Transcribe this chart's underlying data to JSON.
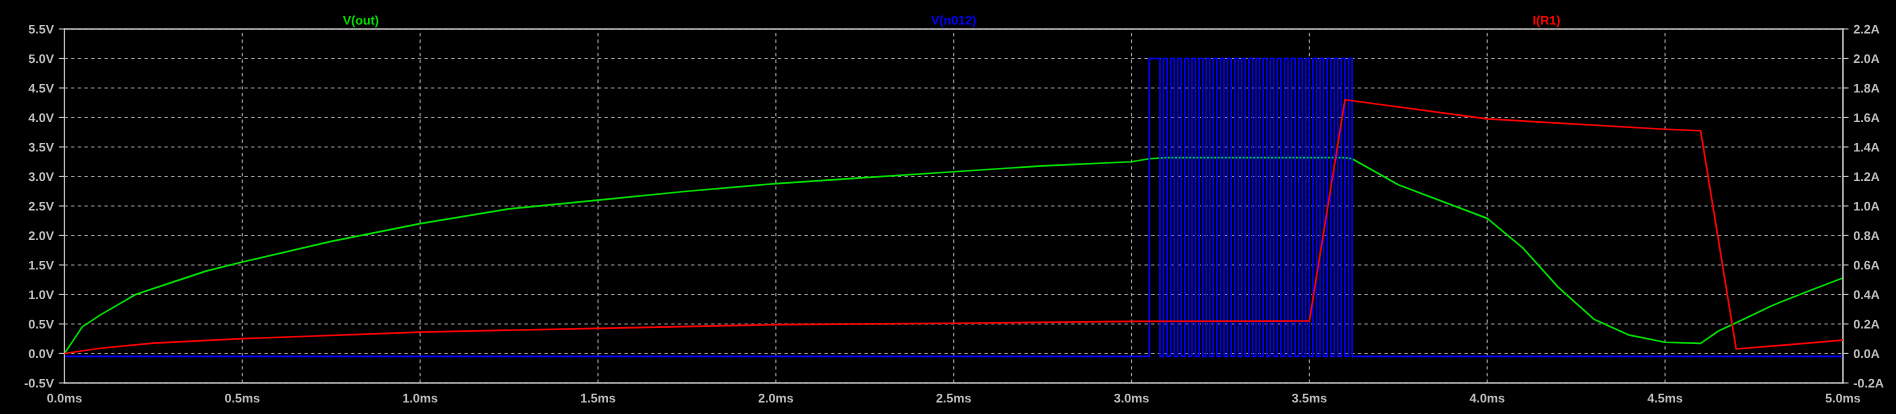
{
  "chart_data": {
    "type": "line",
    "xlim": [
      0,
      5
    ],
    "ylim": [
      -0.5,
      5.5
    ],
    "y2lim": [
      -0.2,
      2.2
    ],
    "xticks": [
      {
        "value": 0,
        "label": "0.0ms"
      },
      {
        "value": 0.5,
        "label": "0.5ms"
      },
      {
        "value": 1,
        "label": "1.0ms"
      },
      {
        "value": 1.5,
        "label": "1.5ms"
      },
      {
        "value": 2,
        "label": "2.0ms"
      },
      {
        "value": 2.5,
        "label": "2.5ms"
      },
      {
        "value": 3,
        "label": "3.0ms"
      },
      {
        "value": 3.5,
        "label": "3.5ms"
      },
      {
        "value": 4,
        "label": "4.0ms"
      },
      {
        "value": 4.5,
        "label": "4.5ms"
      },
      {
        "value": 5,
        "label": "5.0ms"
      }
    ],
    "yticks": [
      {
        "value": -0.5,
        "label": "-0.5V"
      },
      {
        "value": 0,
        "label": "0.0V"
      },
      {
        "value": 0.5,
        "label": "0.5V"
      },
      {
        "value": 1,
        "label": "1.0V"
      },
      {
        "value": 1.5,
        "label": "1.5V"
      },
      {
        "value": 2,
        "label": "2.0V"
      },
      {
        "value": 2.5,
        "label": "2.5V"
      },
      {
        "value": 3,
        "label": "3.0V"
      },
      {
        "value": 3.5,
        "label": "3.5V"
      },
      {
        "value": 4,
        "label": "4.0V"
      },
      {
        "value": 4.5,
        "label": "4.5V"
      },
      {
        "value": 5,
        "label": "5.0V"
      },
      {
        "value": 5.5,
        "label": "5.5V"
      }
    ],
    "y2ticks": [
      {
        "value": -0.2,
        "label": "-0.2A"
      },
      {
        "value": 0,
        "label": "0.0A"
      },
      {
        "value": 0.2,
        "label": "0.2A"
      },
      {
        "value": 0.4,
        "label": "0.4A"
      },
      {
        "value": 0.6,
        "label": "0.6A"
      },
      {
        "value": 0.8,
        "label": "0.8A"
      },
      {
        "value": 1,
        "label": "1.0A"
      },
      {
        "value": 1.2,
        "label": "1.2A"
      },
      {
        "value": 1.4,
        "label": "1.4A"
      },
      {
        "value": 1.6,
        "label": "1.6A"
      },
      {
        "value": 1.8,
        "label": "1.8A"
      },
      {
        "value": 2,
        "label": "2.0A"
      },
      {
        "value": 2.2,
        "label": "2.2A"
      }
    ],
    "grid": true,
    "legend": "top",
    "line_style": "solid",
    "series": [
      {
        "name": "V(out)",
        "color": "#00e000",
        "x": [
          0,
          0.05,
          0.1,
          0.2,
          0.3,
          0.4,
          0.5,
          0.75,
          1.0,
          1.25,
          1.5,
          1.75,
          2.0,
          2.25,
          2.5,
          2.75,
          3.0,
          3.05,
          3.1,
          3.6,
          3.62,
          3.75,
          4.0,
          4.1,
          4.2,
          4.3,
          4.4,
          4.5,
          4.6,
          4.65,
          4.7,
          4.8,
          4.9,
          5.0
        ],
        "values": [
          0,
          0.45,
          0.65,
          1.0,
          1.2,
          1.4,
          1.55,
          1.9,
          2.2,
          2.45,
          2.6,
          2.75,
          2.88,
          2.98,
          3.08,
          3.18,
          3.25,
          3.3,
          3.32,
          3.32,
          3.3,
          2.86,
          2.29,
          1.79,
          1.12,
          0.58,
          0.31,
          0.19,
          0.17,
          0.38,
          0.52,
          0.81,
          1.05,
          1.28
        ]
      },
      {
        "name": "V(n012)",
        "color": "#0000ff",
        "x": [
          0,
          3.05,
          3.05,
          3.08,
          3.08,
          3.09,
          3.09,
          3.1,
          3.1,
          3.11,
          3.11,
          3.12,
          3.12,
          3.13,
          3.13,
          3.14,
          3.14,
          3.15,
          3.15,
          3.16,
          3.16,
          3.17,
          3.17,
          3.18,
          3.18,
          3.19,
          3.19,
          3.2,
          3.2,
          3.21,
          3.21,
          3.22,
          3.22,
          3.23,
          3.23,
          3.24,
          3.24,
          3.25,
          3.25,
          3.26,
          3.26,
          3.27,
          3.27,
          3.28,
          3.28,
          3.29,
          3.29,
          3.3,
          3.3,
          3.31,
          3.31,
          3.32,
          3.32,
          3.33,
          3.33,
          3.34,
          3.34,
          3.35,
          3.35,
          3.36,
          3.36,
          3.37,
          3.37,
          3.38,
          3.38,
          3.39,
          3.39,
          3.4,
          3.4,
          3.41,
          3.41,
          3.42,
          3.42,
          3.43,
          3.43,
          3.44,
          3.44,
          3.45,
          3.45,
          3.46,
          3.46,
          3.47,
          3.47,
          3.48,
          3.48,
          3.49,
          3.49,
          3.5,
          3.5,
          3.51,
          3.51,
          3.52,
          3.52,
          3.53,
          3.53,
          3.54,
          3.54,
          3.55,
          3.55,
          3.56,
          3.56,
          3.57,
          3.57,
          3.58,
          3.58,
          3.59,
          3.59,
          3.6,
          3.6,
          3.61,
          3.61,
          3.62,
          3.62,
          5.0
        ],
        "values": [
          -0.05,
          -0.05,
          5.0,
          5.0,
          -0.05,
          -0.05,
          5.0,
          5.0,
          -0.05,
          -0.05,
          5.0,
          5.0,
          -0.05,
          -0.05,
          5.0,
          5.0,
          -0.05,
          -0.05,
          5.0,
          5.0,
          -0.05,
          -0.05,
          5.0,
          5.0,
          -0.05,
          -0.05,
          5.0,
          5.0,
          -0.05,
          -0.05,
          5.0,
          5.0,
          -0.05,
          -0.05,
          5.0,
          5.0,
          -0.05,
          -0.05,
          5.0,
          5.0,
          -0.05,
          -0.05,
          5.0,
          5.0,
          -0.05,
          -0.05,
          5.0,
          5.0,
          -0.05,
          -0.05,
          5.0,
          5.0,
          -0.05,
          -0.05,
          5.0,
          5.0,
          -0.05,
          -0.05,
          5.0,
          5.0,
          -0.05,
          -0.05,
          5.0,
          5.0,
          -0.05,
          -0.05,
          5.0,
          5.0,
          -0.05,
          -0.05,
          5.0,
          5.0,
          -0.05,
          -0.05,
          5.0,
          5.0,
          -0.05,
          -0.05,
          5.0,
          5.0,
          -0.05,
          -0.05,
          5.0,
          5.0,
          -0.05,
          -0.05,
          5.0,
          5.0,
          -0.05,
          -0.05,
          5.0,
          5.0,
          -0.05,
          -0.05,
          5.0,
          5.0,
          -0.05,
          -0.05,
          5.0,
          5.0,
          -0.05,
          -0.05,
          5.0,
          5.0,
          -0.05,
          -0.05,
          5.0,
          5.0,
          -0.05,
          -0.05,
          5.0,
          5.0,
          -0.05,
          -0.05
        ]
      },
      {
        "name": "I(R1)",
        "color": "#ff0000",
        "axis": "y2",
        "x": [
          0,
          0.1,
          0.25,
          0.5,
          1.0,
          1.5,
          2.0,
          2.5,
          3.0,
          3.5,
          3.6,
          4.0,
          4.5,
          4.6,
          4.7,
          5.0
        ],
        "values": [
          0,
          0.035,
          0.07,
          0.1,
          0.145,
          0.17,
          0.195,
          0.205,
          0.217,
          0.22,
          1.72,
          1.59,
          1.52,
          1.51,
          0.03,
          0.09
        ]
      }
    ]
  }
}
